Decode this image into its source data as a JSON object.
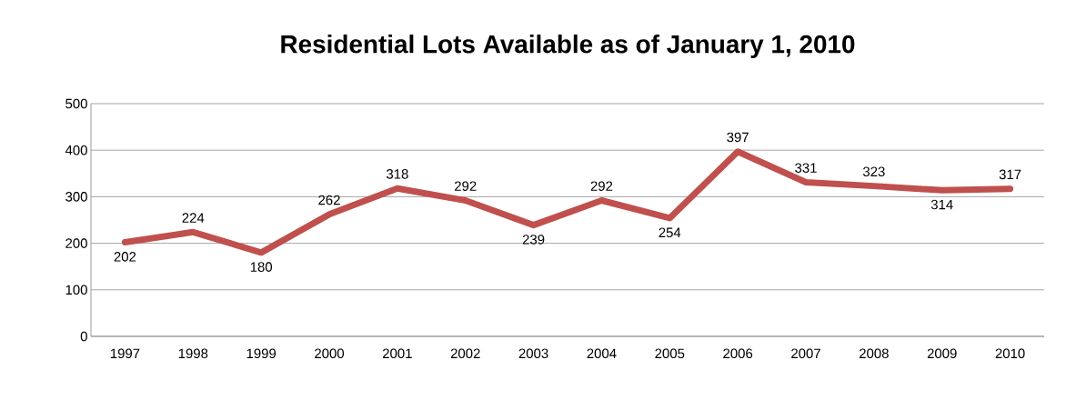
{
  "chart_data": {
    "type": "line",
    "title": "Residential Lots Available as of January 1, 2010",
    "categories": [
      "1997",
      "1998",
      "1999",
      "2000",
      "2001",
      "2002",
      "2003",
      "2004",
      "2005",
      "2006",
      "2007",
      "2008",
      "2009",
      "2010"
    ],
    "values": [
      202,
      224,
      180,
      262,
      318,
      292,
      239,
      292,
      254,
      397,
      331,
      323,
      314,
      317
    ],
    "color": "#c0504d",
    "ylim": [
      0,
      500
    ],
    "yticks": [
      0,
      100,
      200,
      300,
      400,
      500
    ],
    "grid": "y",
    "data_labels": true,
    "marker": "none",
    "line_style": "solid"
  }
}
